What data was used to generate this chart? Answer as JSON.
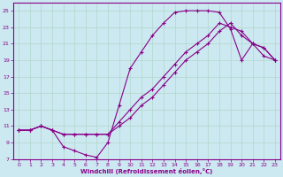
{
  "xlabel": "Windchill (Refroidissement éolien,°C)",
  "bg_color": "#cce8f0",
  "grid_color": "#b0d8cc",
  "line_color": "#880088",
  "marker": "+",
  "xlim": [
    -0.5,
    23.5
  ],
  "ylim": [
    7,
    26
  ],
  "xticks": [
    0,
    1,
    2,
    3,
    4,
    5,
    6,
    7,
    8,
    9,
    10,
    11,
    12,
    13,
    14,
    15,
    16,
    17,
    18,
    19,
    20,
    21,
    22,
    23
  ],
  "yticks": [
    7,
    9,
    11,
    13,
    15,
    17,
    19,
    21,
    23,
    25
  ],
  "curve1_x": [
    0,
    1,
    2,
    3,
    4,
    5,
    6,
    7,
    8,
    9,
    10,
    11,
    12,
    13,
    14,
    15,
    16,
    17,
    18,
    19,
    20,
    21,
    22,
    23
  ],
  "curve1_y": [
    10.5,
    10.5,
    11.0,
    10.5,
    8.5,
    8.0,
    7.5,
    7.2,
    9.0,
    13.5,
    18.0,
    20.0,
    22.0,
    23.5,
    24.8,
    25.0,
    25.0,
    25.0,
    24.8,
    22.8,
    19.0,
    21.0,
    19.5,
    19.0
  ],
  "curve2_x": [
    0,
    1,
    2,
    3,
    4,
    5,
    6,
    7,
    8,
    9,
    10,
    11,
    12,
    13,
    14,
    15,
    16,
    17,
    18,
    19,
    20,
    21,
    22,
    23
  ],
  "curve2_y": [
    10.5,
    10.5,
    11.0,
    10.5,
    10.0,
    10.0,
    10.0,
    10.0,
    10.0,
    11.5,
    13.0,
    14.5,
    15.5,
    17.0,
    18.5,
    20.0,
    21.0,
    22.0,
    23.5,
    23.0,
    22.5,
    21.0,
    20.5,
    19.0
  ],
  "curve3_x": [
    0,
    1,
    2,
    3,
    4,
    5,
    6,
    7,
    8,
    9,
    10,
    11,
    12,
    13,
    14,
    15,
    16,
    17,
    18,
    19,
    20,
    21,
    22,
    23
  ],
  "curve3_y": [
    10.5,
    10.5,
    11.0,
    10.5,
    10.0,
    10.0,
    10.0,
    10.0,
    10.0,
    11.0,
    12.0,
    13.5,
    14.5,
    16.0,
    17.5,
    19.0,
    20.0,
    21.0,
    22.5,
    23.5,
    22.0,
    21.0,
    20.5,
    19.0
  ]
}
